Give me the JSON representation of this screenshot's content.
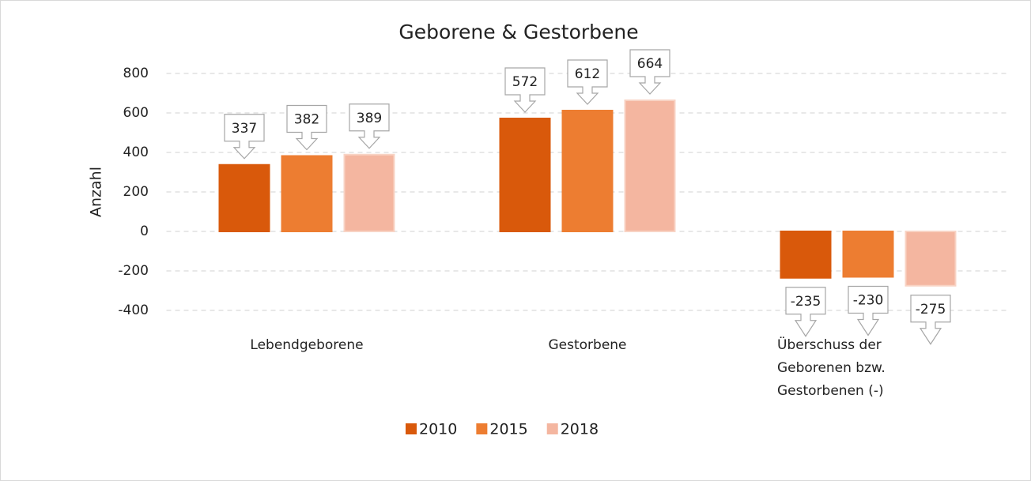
{
  "chart_data": {
    "type": "bar",
    "title": "Geborene & Gestorbene",
    "y_label": "Anzahl",
    "categories": [
      "Lebendgeborene",
      "Gestorbene",
      "Überschuss der Geborenen bzw. Gestorbenen (-)"
    ],
    "series": [
      {
        "name": "2010",
        "color": "#d9590b",
        "values": [
          337,
          572,
          -235
        ]
      },
      {
        "name": "2015",
        "color": "#ed7d31",
        "values": [
          382,
          612,
          -230
        ]
      },
      {
        "name": "2018",
        "color": "#f4b6a0",
        "values": [
          389,
          664,
          -275
        ]
      }
    ],
    "ylim": [
      -400,
      800
    ],
    "yticks": [
      -400,
      -200,
      0,
      200,
      400,
      600,
      800
    ],
    "grid": true,
    "legend": "bottom"
  }
}
